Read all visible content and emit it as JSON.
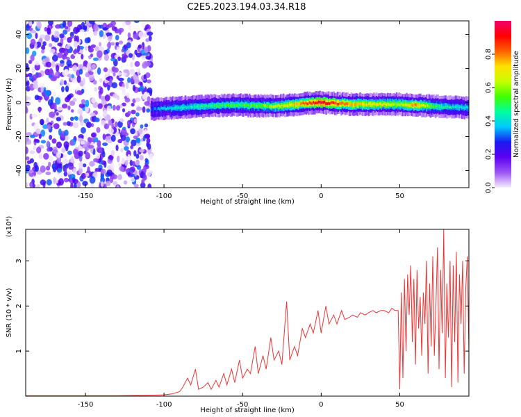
{
  "title": "C2E5.2023.194.03.34.R18",
  "chart_data": [
    {
      "type": "heatmap",
      "xlabel": "Height of straight line (km)",
      "ylabel": "Frequency (Hz)",
      "xlim": [
        -188,
        94
      ],
      "ylim": [
        -50,
        48
      ],
      "xticks": [
        -150,
        -100,
        -50,
        0,
        50
      ],
      "yticks": [
        -40,
        -20,
        0,
        20,
        40
      ],
      "colorbar": {
        "label": "Normalized spectral amplitude",
        "range": [
          0,
          1
        ],
        "ticks": [
          0.0,
          0.2,
          0.4,
          0.6,
          0.8
        ],
        "colors": [
          "#f6eefc",
          "#9b55f5",
          "#5e00f0",
          "#1a1af0",
          "#00c8ff",
          "#00ffa0",
          "#40ff00",
          "#c8ff00",
          "#ffe000",
          "#ff6000",
          "#ff0000",
          "#f0006e"
        ]
      },
      "noise_region_x": [
        -188,
        -108
      ],
      "ridge": {
        "x": [
          -108,
          -100,
          -90,
          -80,
          -70,
          -60,
          -50,
          -40,
          -30,
          -20,
          -10,
          0,
          10,
          20,
          30,
          40,
          50,
          60,
          70,
          80,
          94
        ],
        "y": [
          -4,
          -3.5,
          -3,
          -2.5,
          -2,
          -1.5,
          -1.5,
          -2,
          -2,
          -1.5,
          -0.5,
          0,
          -0.5,
          -1,
          -1,
          -1,
          -1,
          -1.5,
          -2,
          -2.5,
          -3
        ],
        "amplitude": [
          0.3,
          0.38,
          0.42,
          0.45,
          0.48,
          0.5,
          0.52,
          0.55,
          0.6,
          0.7,
          0.82,
          0.95,
          0.85,
          0.75,
          0.7,
          0.68,
          0.6,
          0.8,
          0.55,
          0.45,
          0.4
        ]
      }
    },
    {
      "type": "line",
      "xlabel": "Height of straight line (km)",
      "ylabel": "SNR (10 * v/v)",
      "yscale_label": "(x10⁴)",
      "xlim": [
        -188,
        94
      ],
      "ylim": [
        0,
        3.7
      ],
      "xticks": [
        -150,
        -100,
        -50,
        0,
        50
      ],
      "yticks": [
        1,
        2,
        3
      ],
      "series": [
        {
          "color": "#ee3333",
          "x": [
            -188,
            -160,
            -130,
            -110,
            -100,
            -95,
            -90,
            -88,
            -85,
            -83,
            -80,
            -78,
            -75,
            -72,
            -70,
            -67,
            -65,
            -62,
            -60,
            -57,
            -55,
            -52,
            -50,
            -47,
            -45,
            -42,
            -40,
            -37,
            -35,
            -32,
            -30,
            -27,
            -25,
            -22,
            -20,
            -17,
            -15,
            -12,
            -10,
            -7,
            -5,
            -2,
            0,
            3,
            5,
            8,
            10,
            13,
            15,
            18,
            20,
            23,
            25,
            28,
            30,
            33,
            35,
            38,
            40,
            43,
            45,
            47,
            49,
            50,
            51,
            52,
            53,
            54,
            55,
            56,
            57,
            58,
            59,
            60,
            61,
            62,
            63,
            64,
            65,
            66,
            67,
            68,
            69,
            70,
            71,
            72,
            73,
            74,
            75,
            76,
            77,
            78,
            79,
            80,
            81,
            82,
            83,
            84,
            85,
            86,
            87,
            88,
            89,
            90,
            91,
            92,
            93,
            94
          ],
          "y": [
            0.01,
            0.01,
            0.01,
            0.02,
            0.03,
            0.05,
            0.1,
            0.2,
            0.4,
            0.25,
            0.6,
            0.15,
            0.2,
            0.3,
            0.15,
            0.35,
            0.2,
            0.5,
            0.25,
            0.6,
            0.3,
            0.8,
            0.4,
            0.6,
            0.5,
            1.1,
            0.5,
            0.9,
            0.6,
            1.3,
            0.8,
            1.0,
            0.7,
            2.1,
            0.8,
            1.1,
            0.9,
            1.5,
            1.3,
            1.6,
            1.4,
            1.9,
            1.4,
            2.0,
            1.6,
            1.8,
            1.6,
            1.9,
            1.7,
            1.75,
            1.8,
            1.75,
            1.85,
            1.8,
            1.85,
            1.9,
            1.85,
            1.9,
            1.9,
            1.85,
            1.95,
            1.9,
            1.9,
            0.15,
            2.3,
            0.4,
            2.6,
            1.0,
            2.7,
            1.8,
            2.9,
            1.2,
            2.6,
            0.7,
            2.8,
            1.5,
            2.2,
            0.9,
            2.3,
            1.6,
            3.0,
            0.5,
            2.5,
            1.1,
            3.1,
            0.9,
            2.0,
            3.3,
            0.6,
            2.8,
            1.4,
            3.7,
            0.4,
            2.5,
            1.3,
            3.0,
            0.2,
            2.9,
            1.2,
            3.2,
            0.3,
            2.7,
            1.6,
            3.0,
            0.5,
            2.4,
            3.1,
            1.0
          ]
        }
      ]
    }
  ]
}
